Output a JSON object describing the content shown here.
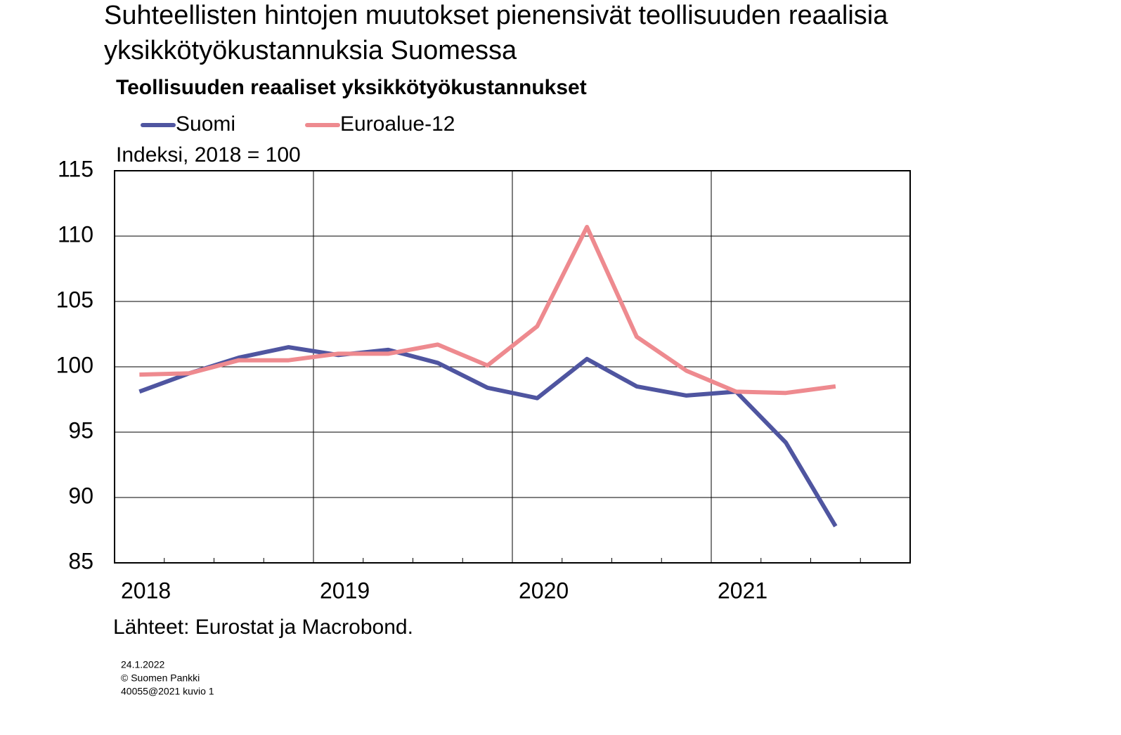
{
  "chart_data": {
    "type": "line",
    "title": [
      "Suhteellisten hintojen muutokset pienensivät teollisuuden reaalisia",
      "yksikkötyökustannuksia Suomessa"
    ],
    "subtitle": "Teollisuuden reaaliset yksikkötyökustannukset",
    "y_label": "Indeksi, 2018 = 100",
    "source": "Lähteet: Eurostat ja Macrobond.",
    "footer": [
      "24.1.2022",
      "© Suomen  Pankki",
      "40055@2021  kuvio  1"
    ],
    "categories": [
      "2018",
      null,
      null,
      null,
      "2019",
      null,
      null,
      null,
      "2020",
      null,
      null,
      null,
      "2021",
      null,
      null,
      null
    ],
    "series": [
      {
        "name": "Suomi",
        "color": "#4f55a0",
        "values": [
          98.1,
          99.5,
          100.7,
          101.5,
          100.9,
          101.3,
          100.3,
          98.4,
          97.6,
          100.6,
          98.5,
          97.8,
          98.1,
          94.2,
          87.8,
          null
        ]
      },
      {
        "name": "Euroalue-12",
        "color": "#ee8a8f",
        "values": [
          99.4,
          99.5,
          100.5,
          100.5,
          101.0,
          101.0,
          101.7,
          100.1,
          103.1,
          110.7,
          102.3,
          99.7,
          98.1,
          98.0,
          98.5,
          null
        ]
      }
    ],
    "ylim": [
      85,
      115
    ],
    "yticks": [
      85,
      90,
      95,
      100,
      105,
      110,
      115
    ],
    "grid": true
  }
}
